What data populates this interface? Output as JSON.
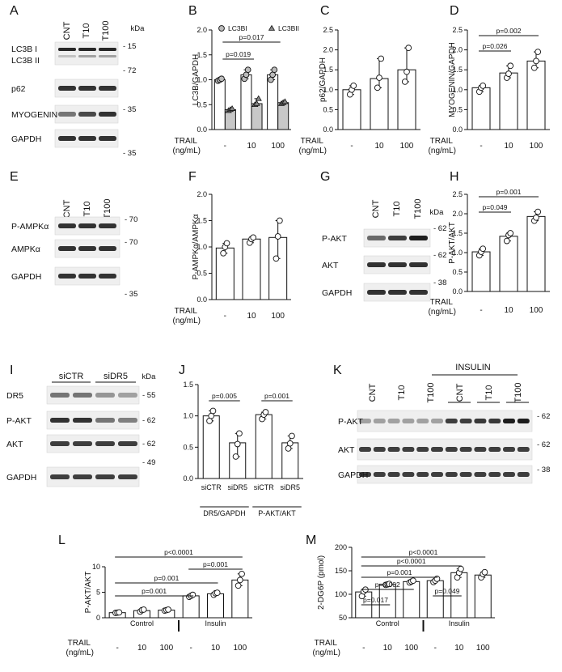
{
  "panels": [
    {
      "id": "A",
      "letter": "A",
      "type": "blot",
      "header": "kDa",
      "lanes": [
        "CNT",
        "T10",
        "T100"
      ],
      "rows": [
        {
          "label": "LC3B I",
          "label2": "LC3B II",
          "kda": "- 15",
          "double": true
        },
        {
          "label": "p62",
          "kda": "- 72"
        },
        {
          "label": "MYOGENIN",
          "kda": "- 35"
        },
        {
          "label": "GAPDH",
          "kda": "- 35"
        }
      ]
    },
    {
      "id": "B",
      "letter": "B",
      "type": "chart"
    },
    {
      "id": "C",
      "letter": "C",
      "type": "chart"
    },
    {
      "id": "D",
      "letter": "D",
      "type": "chart"
    },
    {
      "id": "E",
      "letter": "E",
      "type": "blot",
      "header": "",
      "lanes": [
        "CNT",
        "T10",
        "T100"
      ],
      "rows": [
        {
          "label": "P-AMPKα",
          "kda": "- 70"
        },
        {
          "label": "AMPKα",
          "kda": "- 70"
        },
        {
          "label": "GAPDH",
          "kda": "- 35"
        }
      ]
    },
    {
      "id": "F",
      "letter": "F",
      "type": "chart"
    },
    {
      "id": "G",
      "letter": "G",
      "type": "blot",
      "header": "kDa",
      "lanes": [
        "CNT",
        "T10",
        "T100"
      ],
      "rows": [
        {
          "label": "P-AKT",
          "kda": "- 62"
        },
        {
          "label": "AKT",
          "kda": "- 62"
        },
        {
          "label": "GAPDH",
          "kda": "- 38"
        }
      ]
    },
    {
      "id": "H",
      "letter": "H",
      "type": "chart"
    },
    {
      "id": "I",
      "letter": "I",
      "type": "blot",
      "header": "kDa",
      "groups": [
        "siCTR",
        "siDR5"
      ],
      "rows": [
        {
          "label": "DR5",
          "kda": "- 55"
        },
        {
          "label": "P-AKT",
          "kda": "- 62"
        },
        {
          "label": "AKT",
          "kda": "- 62"
        },
        {
          "label": "",
          "kda": "- 49"
        },
        {
          "label": "GAPDH",
          "kda": ""
        }
      ]
    },
    {
      "id": "J",
      "letter": "J",
      "type": "chart"
    },
    {
      "id": "K",
      "letter": "K",
      "type": "blot",
      "header": "INSULIN",
      "lanes": [
        "CNT",
        "T10",
        "T100",
        "CNT",
        "T10",
        "T100"
      ],
      "rows": [
        {
          "label": "P-AKT",
          "kda": "- 62"
        },
        {
          "label": "AKT",
          "kda": "- 62"
        },
        {
          "label": "GAPDH",
          "kda": "- 38"
        }
      ]
    },
    {
      "id": "L",
      "letter": "L",
      "type": "chart"
    },
    {
      "id": "M",
      "letter": "M",
      "type": "chart"
    }
  ],
  "chart_data": [
    {
      "panel": "B",
      "type": "bar",
      "ylabel": "LC3B/GAPDH",
      "ylim": [
        0,
        2
      ],
      "yticks": [
        "0.0",
        "0.5",
        "1.0",
        "1.5",
        "2.0"
      ],
      "categories": [
        "-",
        "10",
        "100"
      ],
      "xheader": "TRAIL",
      "xunit": "(ng/mL)",
      "series": [
        {
          "name": "LC3BI",
          "values": [
            1.0,
            1.1,
            1.1
          ],
          "points": [
            [
              0.98,
              1.0,
              1.02
            ],
            [
              1.02,
              1.1,
              1.2
            ],
            [
              1.0,
              1.1,
              1.2
            ]
          ]
        },
        {
          "name": "LC3BII",
          "values": [
            0.4,
            0.52,
            0.54
          ],
          "points": [
            [
              0.38,
              0.4,
              0.42
            ],
            [
              0.5,
              0.52,
              0.62
            ],
            [
              0.52,
              0.54,
              0.56
            ]
          ]
        }
      ],
      "legend": "top",
      "annotations": [
        {
          "text": "p=0.017",
          "from": 0,
          "to": 2
        },
        {
          "text": "p=0.019",
          "from": 0,
          "to": 1
        }
      ]
    },
    {
      "panel": "C",
      "type": "bar",
      "ylabel": "p62/GAPDH",
      "ylim": [
        0,
        2.5
      ],
      "yticks": [
        "0.0",
        "0.5",
        "1.0",
        "1.5",
        "2.0",
        "2.5"
      ],
      "categories": [
        "-",
        "10",
        "100"
      ],
      "xheader": "TRAIL",
      "xunit": "(ng/mL)",
      "values": [
        1.0,
        1.28,
        1.5
      ],
      "points": [
        [
          0.88,
          1.0,
          1.1
        ],
        [
          1.05,
          1.3,
          1.78
        ],
        [
          1.2,
          1.45,
          2.05
        ]
      ],
      "annotations": []
    },
    {
      "panel": "D",
      "type": "bar",
      "ylabel": "MYOGENIN/GAPDH",
      "ylim": [
        0,
        2.5
      ],
      "yticks": [
        "0.0",
        "0.5",
        "1.0",
        "1.5",
        "2.0",
        "2.5"
      ],
      "categories": [
        "-",
        "10",
        "100"
      ],
      "xheader": "TRAIL",
      "xunit": "(ng/mL)",
      "values": [
        1.05,
        1.42,
        1.72
      ],
      "points": [
        [
          0.95,
          1.05,
          1.1
        ],
        [
          1.3,
          1.4,
          1.6
        ],
        [
          1.55,
          1.72,
          1.95
        ]
      ],
      "annotations": [
        {
          "text": "p=0.002",
          "from": 0,
          "to": 2
        },
        {
          "text": "p=0.026",
          "from": 0,
          "to": 1
        }
      ]
    },
    {
      "panel": "F",
      "type": "bar",
      "ylabel": "P-AMPKα/AMPKα",
      "ylim": [
        0,
        2
      ],
      "yticks": [
        "0.0",
        "0.5",
        "1.0",
        "1.5",
        "2.0"
      ],
      "categories": [
        "-",
        "10",
        "100"
      ],
      "xheader": "TRAIL",
      "xunit": "(ng/mL)",
      "values": [
        0.98,
        1.15,
        1.18
      ],
      "points": [
        [
          0.88,
          1.0,
          1.07
        ],
        [
          1.08,
          1.15,
          1.18
        ],
        [
          0.78,
          1.2,
          1.5
        ]
      ],
      "annotations": []
    },
    {
      "panel": "H",
      "type": "bar",
      "ylabel": "P-AKT/AKT",
      "ylim": [
        0,
        2.5
      ],
      "yticks": [
        "0.0",
        "0.5",
        "1.0",
        "1.5",
        "2.0",
        "2.5"
      ],
      "categories": [
        "-",
        "10",
        "100"
      ],
      "xheader": "TRAIL",
      "xunit": "(ng/mL)",
      "values": [
        1.02,
        1.42,
        1.93
      ],
      "points": [
        [
          0.93,
          1.02,
          1.1
        ],
        [
          1.3,
          1.45,
          1.5
        ],
        [
          1.82,
          1.9,
          2.05
        ]
      ],
      "annotations": [
        {
          "text": "p=0.001",
          "from": 0,
          "to": 2
        },
        {
          "text": "p=0.049",
          "from": 0,
          "to": 1
        }
      ]
    },
    {
      "panel": "J",
      "type": "bar",
      "ylabel": "",
      "ylim": [
        0,
        1.5
      ],
      "yticks": [
        "0.0",
        "0.5",
        "1.0",
        "1.5"
      ],
      "categories": [
        "siCTR",
        "siDR5",
        "siCTR",
        "siDR5"
      ],
      "groups": [
        "DR5/GAPDH",
        "P-AKT/AKT"
      ],
      "values": [
        1.0,
        0.57,
        1.02,
        0.57
      ],
      "points": [
        [
          0.92,
          1.0,
          1.08
        ],
        [
          0.35,
          0.55,
          0.72
        ],
        [
          0.95,
          1.02,
          1.06
        ],
        [
          0.48,
          0.56,
          0.68
        ]
      ],
      "annotations": [
        {
          "text": "p=0.005",
          "from": 0,
          "to": 1
        },
        {
          "text": "p=0.001",
          "from": 2,
          "to": 3
        }
      ]
    },
    {
      "panel": "L",
      "type": "bar",
      "ylabel": "P-AKT/AKT",
      "ylim": [
        0,
        10
      ],
      "yticks": [
        "0",
        "5",
        "10"
      ],
      "categories": [
        "-",
        "10",
        "100",
        "-",
        "10",
        "100"
      ],
      "xheader": "TRAIL",
      "xunit": "(ng/mL)",
      "groups": [
        "Control",
        "Insulin"
      ],
      "values": [
        1.0,
        1.4,
        1.5,
        4.3,
        4.7,
        7.4
      ],
      "points": [
        [
          0.95,
          1.0,
          1.05
        ],
        [
          1.2,
          1.5,
          1.6
        ],
        [
          1.4,
          1.5,
          1.6
        ],
        [
          4.1,
          4.3,
          4.5
        ],
        [
          4.5,
          4.8,
          4.9
        ],
        [
          6.3,
          7.4,
          8.6
        ]
      ],
      "annotations": [
        {
          "text": "p<0.0001",
          "from": 0,
          "to": 5
        },
        {
          "text": "p=0.001",
          "from": 3,
          "to": 5
        },
        {
          "text": "p=0.001",
          "from": 0,
          "to": 4
        },
        {
          "text": "p=0.001",
          "from": 0,
          "to": 3
        }
      ]
    },
    {
      "panel": "M",
      "type": "bar",
      "ylabel": "2-DG6P (pmol)",
      "ylim": [
        50,
        200
      ],
      "yticks": [
        "50",
        "100",
        "150",
        "200"
      ],
      "categories": [
        "-",
        "10",
        "100",
        "-",
        "10",
        "100"
      ],
      "xheader": "TRAIL",
      "xunit": "(ng/mL)",
      "groups": [
        "Control",
        "Insulin"
      ],
      "values": [
        105,
        121,
        127,
        129,
        146,
        141
      ],
      "points": [
        [
          96,
          106,
          110
        ],
        [
          120,
          121,
          122
        ],
        [
          125,
          127,
          129
        ],
        [
          126,
          129,
          133
        ],
        [
          136,
          146,
          154
        ],
        [
          136,
          143,
          147
        ]
      ],
      "annotations": [
        {
          "text": "p<0.0001",
          "from": 0,
          "to": 5
        },
        {
          "text": "p<0.0001",
          "from": 0,
          "to": 4
        },
        {
          "text": "p=0.001",
          "from": 0,
          "to": 3
        },
        {
          "text": "p=0.002",
          "from": 0,
          "to": 2
        },
        {
          "text": "p=0.049",
          "from": 3,
          "to": 4
        },
        {
          "text": "p=0.017",
          "from": 0,
          "to": 1
        }
      ]
    }
  ]
}
